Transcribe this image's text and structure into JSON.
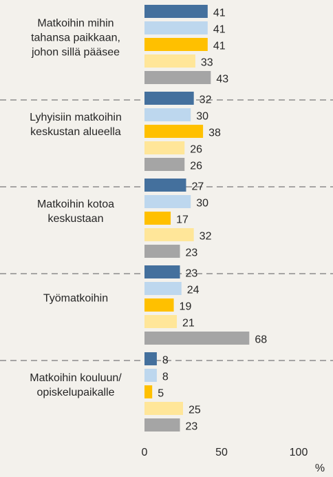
{
  "chart_data": {
    "type": "bar",
    "orientation": "horizontal",
    "categories": [
      "Matkoihin mihin\ntahansa paikkaan,\njohon sillä pääsee",
      "Lyhyisiin matkoihin\nkeskustan alueella",
      "Matkoihin kotoa\nkeskustaan",
      "Työmatkoihin",
      "Matkoihin kouluun/\nopiskelupaikalle"
    ],
    "series": [
      {
        "color": "#44709d",
        "values": [
          41,
          32,
          27,
          23,
          8
        ]
      },
      {
        "color": "#bdd7ee",
        "values": [
          41,
          30,
          30,
          24,
          8
        ]
      },
      {
        "color": "#ffc000",
        "values": [
          41,
          38,
          17,
          19,
          5
        ]
      },
      {
        "color": "#ffe699",
        "values": [
          33,
          26,
          32,
          21,
          25
        ]
      },
      {
        "color": "#a5a5a5",
        "values": [
          43,
          26,
          23,
          68,
          23
        ]
      }
    ],
    "xlim": [
      0,
      100
    ],
    "xticks": [
      0,
      50,
      100
    ],
    "x_label": "%"
  }
}
